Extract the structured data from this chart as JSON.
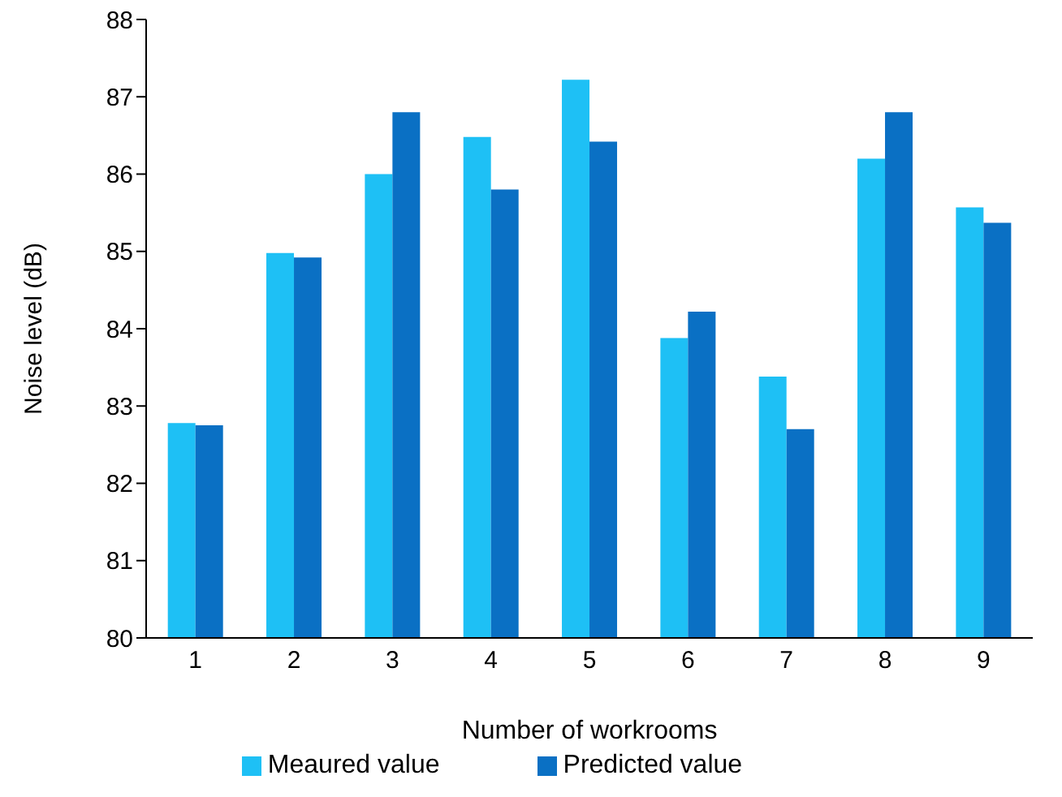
{
  "chart_data": {
    "type": "bar",
    "xlabel": "Number of workrooms",
    "ylabel": "Noise level (dB)",
    "categories": [
      "1",
      "2",
      "3",
      "4",
      "5",
      "6",
      "7",
      "8",
      "9"
    ],
    "series": [
      {
        "name": "Meaured value",
        "color": "#1ec0f5",
        "values": [
          82.78,
          84.98,
          86.0,
          86.48,
          87.22,
          83.88,
          83.38,
          86.2,
          85.57
        ]
      },
      {
        "name": "Predicted  value",
        "color": "#0a70c4",
        "values": [
          82.75,
          84.92,
          86.8,
          85.8,
          86.42,
          84.22,
          82.7,
          86.8,
          85.37
        ]
      }
    ],
    "ylim": [
      80,
      88
    ],
    "yticks": [
      80,
      81,
      82,
      83,
      84,
      85,
      86,
      87,
      88
    ],
    "grid": false,
    "legend": "bottom"
  }
}
